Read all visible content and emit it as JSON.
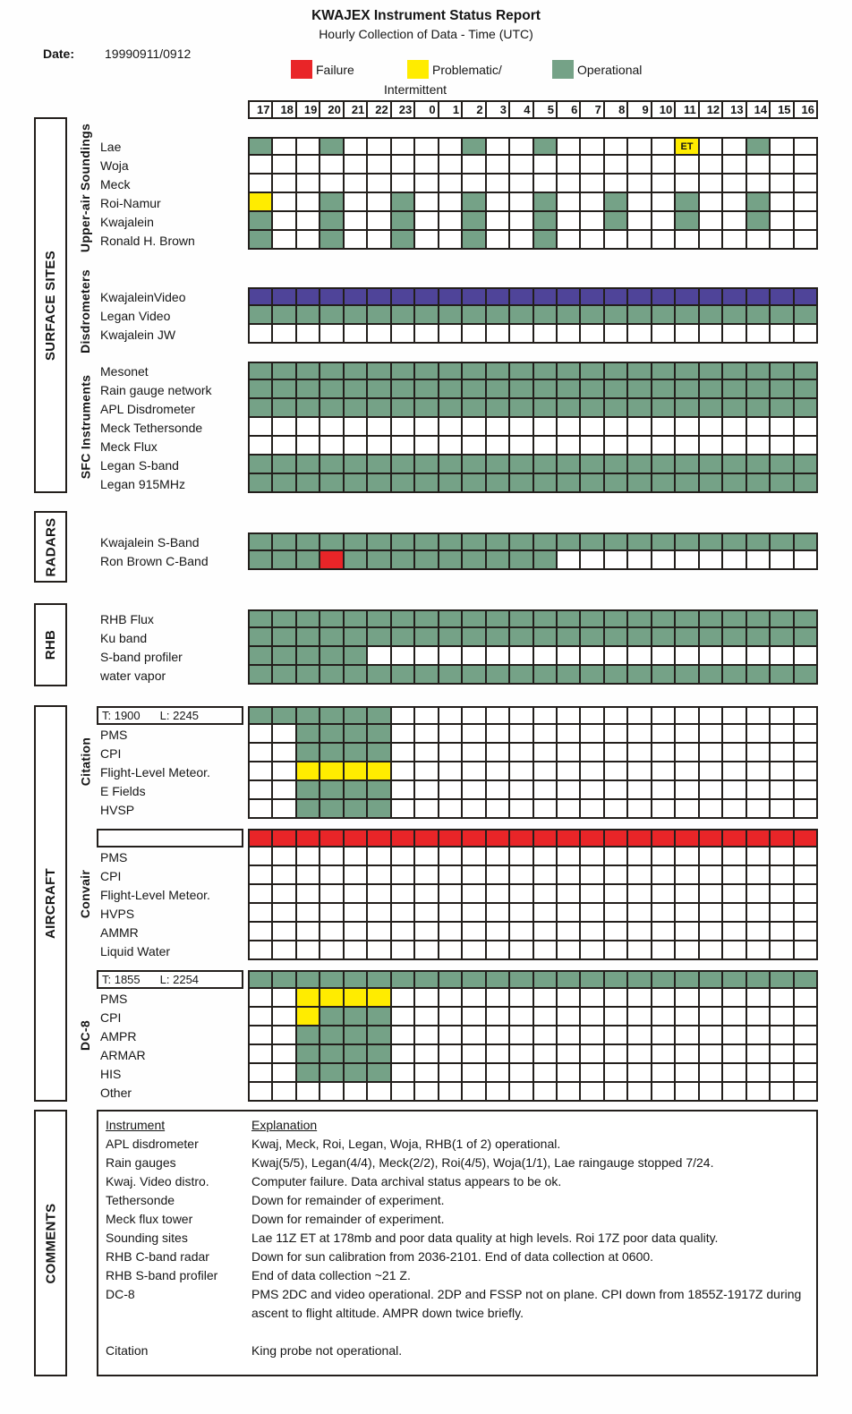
{
  "title": "KWAJEX Instrument Status Report",
  "subtitle": "Hourly Collection of Data - Time (UTC)",
  "date": {
    "label": "Date:",
    "value": "19990911/0912"
  },
  "legend": {
    "failure": "Failure",
    "problematic_line1": "Problematic/",
    "problematic_line2": "Intermittent",
    "operational": "Operational"
  },
  "colors": {
    "G": "#75a287",
    "Y": "#ffec00",
    "R": "#e92528",
    "P": "#4f4499"
  },
  "sidebar": {
    "surface_sites": "SURFACE SITES",
    "upper_air": "Upper-air Soundings",
    "disdrometers": "Disdrometers",
    "sfc_instruments": "SFC Instruments",
    "radars": "RADARS",
    "rhb": "RHB",
    "aircraft": "AIRCRAFT",
    "citation": "Citation",
    "convair": "Convair",
    "dc8": "DC-8",
    "comments": "COMMENTS"
  },
  "chart_data": {
    "type": "heatmap",
    "title": "KWAJEX Instrument Status Report",
    "x_axis": "Time (UTC)",
    "hours": [
      "17",
      "18",
      "19",
      "20",
      "21",
      "22",
      "23",
      "0",
      "1",
      "2",
      "3",
      "4",
      "5",
      "6",
      "7",
      "8",
      "9",
      "10",
      "11",
      "12",
      "13",
      "14",
      "15",
      "16"
    ],
    "cell_legend": {
      "G": "Operational",
      "Y": "Problematic/Intermittent",
      "R": "Failure",
      "P": "Purple band (Kwajalein video)",
      ".": "No data"
    },
    "blocks": {
      "upper_air": {
        "rows": [
          {
            "label": "Lae",
            "cells": "G..G.....G..G.....Y..G..",
            "annotations": [
              {
                "col": 18,
                "text": "ET"
              }
            ]
          },
          {
            "label": "Woja",
            "cells": "........................"
          },
          {
            "label": "Meck",
            "cells": "........................"
          },
          {
            "label": "Roi-Namur",
            "cells": "Y..G..G..G..G..G..G..G.."
          },
          {
            "label": "Kwajalein",
            "cells": "G..G..G..G..G..G..G..G.."
          },
          {
            "label": "Ronald H. Brown",
            "cells": "G..G..G..G..G..........."
          }
        ]
      },
      "disdrometers": {
        "rows": [
          {
            "label": "KwajaleinVideo",
            "cells": "PPPPPPPPPPPPPPPPPPPPPPPP"
          },
          {
            "label": "Legan Video",
            "cells": "GGGGGGGGGGGGGGGGGGGGGGGG"
          },
          {
            "label": "Kwajalein JW",
            "cells": "........................"
          }
        ]
      },
      "sfc": {
        "rows": [
          {
            "label": "Mesonet",
            "cells": "GGGGGGGGGGGGGGGGGGGGGGGG"
          },
          {
            "label": "Rain gauge network",
            "cells": "GGGGGGGGGGGGGGGGGGGGGGGG"
          },
          {
            "label": "APL Disdrometer",
            "cells": "GGGGGGGGGGGGGGGGGGGGGGGG"
          },
          {
            "label": "Meck Tethersonde",
            "cells": "........................"
          },
          {
            "label": "Meck Flux",
            "cells": "........................"
          },
          {
            "label": "Legan S-band",
            "cells": "GGGGGGGGGGGGGGGGGGGGGGGG"
          },
          {
            "label": "Legan 915MHz",
            "cells": "GGGGGGGGGGGGGGGGGGGGGGGG"
          }
        ]
      },
      "radars": {
        "rows": [
          {
            "label": "Kwajalein S-Band",
            "cells": "GGGGGGGGGGGGGGGGGGGGGGGG"
          },
          {
            "label": "Ron Brown C-Band",
            "cells": "GGGRGGGGGGGGG..........."
          }
        ]
      },
      "rhb": {
        "rows": [
          {
            "label": "RHB Flux",
            "cells": "GGGGGGGGGGGGGGGGGGGGGGGG"
          },
          {
            "label": "Ku band",
            "cells": "GGGGGGGGGGGGGGGGGGGGGGGG"
          },
          {
            "label": "S-band profiler",
            "cells": "GGGGG..................."
          },
          {
            "label": "water vapor",
            "cells": "GGGGGGGGGGGGGGGGGGGGGGGG"
          }
        ]
      },
      "citation": {
        "rows": [
          {
            "label": "T: 1900",
            "label2": "L: 2245",
            "boxed": true,
            "cells": "GGGGGG.................."
          },
          {
            "label": "PMS",
            "cells": "..GGGG.................."
          },
          {
            "label": "CPI",
            "cells": "..GGGG.................."
          },
          {
            "label": "Flight-Level Meteor.",
            "cells": "..YYYY.................."
          },
          {
            "label": "E Fields",
            "cells": "..GGGG.................."
          },
          {
            "label": "HVSP",
            "cells": "..GGGG.................."
          }
        ]
      },
      "convair": {
        "rows": [
          {
            "label": "",
            "boxed": true,
            "cells": "RRRRRRRRRRRRRRRRRRRRRRRR"
          },
          {
            "label": "PMS",
            "cells": "........................"
          },
          {
            "label": "CPI",
            "cells": "........................"
          },
          {
            "label": "Flight-Level Meteor.",
            "cells": "........................"
          },
          {
            "label": "HVPS",
            "cells": "........................"
          },
          {
            "label": "AMMR",
            "cells": "........................"
          },
          {
            "label": "Liquid Water",
            "cells": "........................"
          }
        ]
      },
      "dc8": {
        "rows": [
          {
            "label": "T: 1855",
            "label2": "L: 2254",
            "boxed": true,
            "cells": "GGGGGGGGGGGGGGGGGGGGGGGG"
          },
          {
            "label": "PMS",
            "cells": "..YYYY.................."
          },
          {
            "label": "CPI",
            "cells": "..YGGG.................."
          },
          {
            "label": "AMPR",
            "cells": "..GGGG.................."
          },
          {
            "label": "ARMAR",
            "cells": "..GGGG.................."
          },
          {
            "label": "HIS",
            "cells": "..GGGG.................."
          },
          {
            "label": "Other",
            "cells": "........................"
          }
        ]
      }
    }
  },
  "comments": {
    "col1_header": "Instrument",
    "col2_header": "Explanation",
    "rows": [
      {
        "instrument": "APL disdrometer",
        "explanation": "Kwaj, Meck, Roi, Legan, Woja, RHB(1 of 2) operational."
      },
      {
        "instrument": "Rain gauges",
        "explanation": "Kwaj(5/5), Legan(4/4), Meck(2/2), Roi(4/5), Woja(1/1), Lae raingauge stopped 7/24."
      },
      {
        "instrument": "Kwaj. Video distro.",
        "explanation": "Computer failure. Data archival status appears to be ok."
      },
      {
        "instrument": "Tethersonde",
        "explanation": "Down for remainder of experiment."
      },
      {
        "instrument": "Meck flux tower",
        "explanation": "Down for remainder of experiment."
      },
      {
        "instrument": "Sounding sites",
        "explanation": "Lae 11Z ET at 178mb and poor data quality at high levels. Roi 17Z poor data quality."
      },
      {
        "instrument": "RHB C-band radar",
        "explanation": "Down for sun calibration from 2036-2101. End of data collection at 0600."
      },
      {
        "instrument": "RHB S-band profiler",
        "explanation": "End of data collection ~21 Z."
      },
      {
        "instrument": "DC-8",
        "explanation": "PMS 2DC and video operational. 2DP and FSSP not on plane. CPI down from 1855Z-1917Z during ascent to flight altitude. AMPR down twice briefly."
      },
      {
        "instrument": "Citation",
        "explanation": "King probe not operational.",
        "gap_before": true
      }
    ]
  }
}
